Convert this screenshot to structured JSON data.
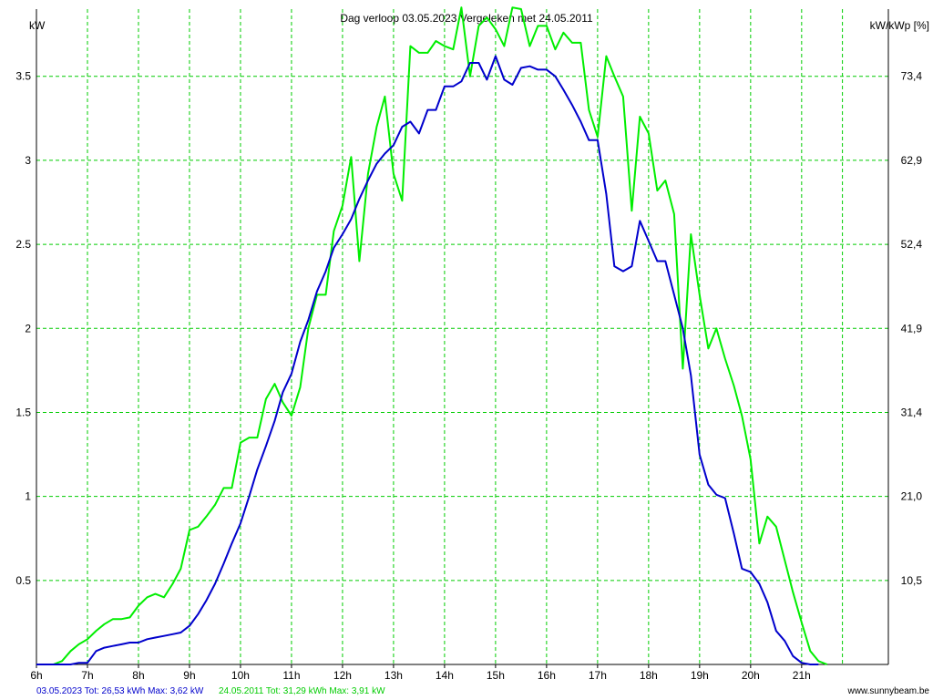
{
  "chart_data": {
    "type": "line",
    "title": "Dag  verloop 03.05.2023   Vergeleken met 24.05.2011",
    "ylabel_left": "kW",
    "ylabel_right": "kW/kWp [%]",
    "xlim": [
      6.0,
      22.7
    ],
    "ylim": [
      0,
      3.9
    ],
    "grid": true,
    "x_ticks": [
      6,
      7,
      8,
      9,
      10,
      11,
      12,
      13,
      14,
      15,
      16,
      17,
      18,
      19,
      20,
      21
    ],
    "x_tick_labels": [
      "6h",
      "7h",
      "8h",
      "9h",
      "10h",
      "11h",
      "12h",
      "13h",
      "14h",
      "15h",
      "16h",
      "17h",
      "18h",
      "19h",
      "20h",
      "21h"
    ],
    "y_ticks": [
      0.5,
      1,
      1.5,
      2,
      2.5,
      3,
      3.5
    ],
    "y_tick_labels": [
      "0.5",
      "1",
      "1.5",
      "2",
      "2.5",
      "3",
      "3.5"
    ],
    "y2_tick_labels": [
      "10,5",
      "21,0",
      "31,4",
      "41,9",
      "52,4",
      "62,9",
      "73,4"
    ],
    "colors": {
      "grid": "#00cc00",
      "series_2023": "#0000cc",
      "series_2011": "#00ee00",
      "axis": "#000000"
    },
    "series": [
      {
        "name": "03.05.2023",
        "color": "#0000cc",
        "x": [
          6.0,
          6.67,
          6.83,
          7.0,
          7.17,
          7.33,
          7.5,
          7.67,
          7.83,
          8.0,
          8.17,
          8.33,
          8.5,
          8.67,
          8.83,
          9.0,
          9.17,
          9.33,
          9.5,
          9.67,
          9.83,
          10.0,
          10.17,
          10.33,
          10.5,
          10.67,
          10.83,
          11.0,
          11.17,
          11.33,
          11.5,
          11.67,
          11.83,
          12.0,
          12.17,
          12.33,
          12.5,
          12.67,
          12.83,
          13.0,
          13.17,
          13.33,
          13.5,
          13.67,
          13.83,
          14.0,
          14.17,
          14.33,
          14.5,
          14.67,
          14.83,
          15.0,
          15.17,
          15.33,
          15.5,
          15.67,
          15.83,
          16.0,
          16.17,
          16.33,
          16.5,
          16.67,
          16.83,
          17.0,
          17.17,
          17.33,
          17.5,
          17.67,
          17.83,
          18.0,
          18.17,
          18.33,
          18.5,
          18.67,
          18.83,
          19.0,
          19.17,
          19.33,
          19.5,
          19.67,
          19.83,
          20.0,
          20.17,
          20.33,
          20.5,
          20.67,
          20.83,
          21.0,
          21.17,
          21.33
        ],
        "y": [
          0,
          0,
          0.01,
          0.01,
          0.08,
          0.1,
          0.11,
          0.12,
          0.13,
          0.13,
          0.15,
          0.16,
          0.17,
          0.18,
          0.19,
          0.23,
          0.3,
          0.38,
          0.48,
          0.6,
          0.72,
          0.84,
          1.0,
          1.16,
          1.3,
          1.45,
          1.62,
          1.73,
          1.92,
          2.05,
          2.22,
          2.34,
          2.48,
          2.56,
          2.65,
          2.77,
          2.88,
          2.98,
          3.04,
          3.09,
          3.2,
          3.23,
          3.16,
          3.3,
          3.3,
          3.44,
          3.44,
          3.47,
          3.58,
          3.58,
          3.48,
          3.62,
          3.48,
          3.45,
          3.55,
          3.56,
          3.54,
          3.54,
          3.5,
          3.42,
          3.33,
          3.23,
          3.12,
          3.12,
          2.8,
          2.37,
          2.34,
          2.37,
          2.64,
          2.52,
          2.4,
          2.4,
          2.2,
          2.0,
          1.72,
          1.25,
          1.07,
          1.01,
          0.99,
          0.78,
          0.57,
          0.55,
          0.48,
          0.37,
          0.2,
          0.14,
          0.05,
          0.01,
          0,
          0
        ]
      },
      {
        "name": "24.05.2011",
        "color": "#00ee00",
        "x": [
          6.0,
          6.33,
          6.5,
          6.67,
          6.83,
          7.0,
          7.17,
          7.33,
          7.5,
          7.67,
          7.83,
          8.0,
          8.17,
          8.33,
          8.5,
          8.67,
          8.83,
          9.0,
          9.17,
          9.33,
          9.5,
          9.67,
          9.83,
          10.0,
          10.17,
          10.33,
          10.5,
          10.67,
          10.83,
          11.0,
          11.17,
          11.33,
          11.5,
          11.67,
          11.83,
          12.0,
          12.17,
          12.33,
          12.5,
          12.67,
          12.83,
          13.0,
          13.17,
          13.33,
          13.5,
          13.67,
          13.83,
          14.0,
          14.17,
          14.33,
          14.5,
          14.67,
          14.83,
          15.0,
          15.17,
          15.33,
          15.5,
          15.67,
          15.83,
          16.0,
          16.17,
          16.33,
          16.5,
          16.67,
          16.83,
          17.0,
          17.17,
          17.33,
          17.5,
          17.67,
          17.83,
          18.0,
          18.17,
          18.33,
          18.5,
          18.67,
          18.83,
          19.0,
          19.17,
          19.33,
          19.5,
          19.67,
          19.83,
          20.0,
          20.17,
          20.33,
          20.5,
          20.67,
          20.83,
          21.0,
          21.17,
          21.33,
          21.5
        ],
        "y": [
          0,
          0,
          0.02,
          0.08,
          0.12,
          0.15,
          0.2,
          0.24,
          0.27,
          0.27,
          0.28,
          0.35,
          0.4,
          0.42,
          0.4,
          0.48,
          0.57,
          0.8,
          0.82,
          0.88,
          0.95,
          1.05,
          1.05,
          1.32,
          1.35,
          1.35,
          1.58,
          1.67,
          1.56,
          1.48,
          1.65,
          2.0,
          2.2,
          2.2,
          2.58,
          2.73,
          3.02,
          2.4,
          2.92,
          3.2,
          3.38,
          2.92,
          2.76,
          3.68,
          3.64,
          3.64,
          3.71,
          3.68,
          3.66,
          3.91,
          3.5,
          3.8,
          3.85,
          3.78,
          3.68,
          3.91,
          3.9,
          3.68,
          3.8,
          3.8,
          3.66,
          3.76,
          3.7,
          3.7,
          3.3,
          3.14,
          3.62,
          3.5,
          3.38,
          2.7,
          3.26,
          3.16,
          2.82,
          2.88,
          2.68,
          1.76,
          2.56,
          2.2,
          1.88,
          2.0,
          1.82,
          1.66,
          1.48,
          1.22,
          0.72,
          0.88,
          0.82,
          0.62,
          0.43,
          0.25,
          0.08,
          0.02,
          0
        ]
      }
    ]
  },
  "footer": {
    "series1_summary": "03.05.2023 Tot: 26,53 kWh Max: 3,62 kW",
    "series2_summary": "24.05.2011 Tot: 31,29 kWh Max: 3,91 kW",
    "credit": "www.sunnybeam.be"
  }
}
